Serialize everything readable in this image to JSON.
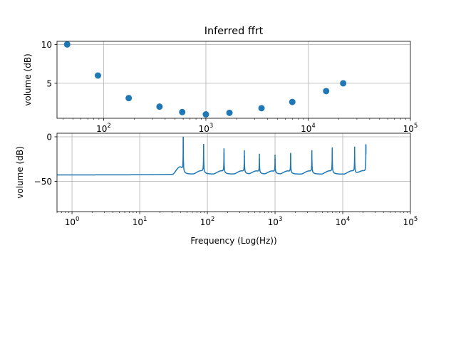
{
  "chart_data": [
    {
      "type": "scatter",
      "title": "Inferred ffrt",
      "xlabel": "",
      "ylabel": "volume (dB)",
      "xscale": "log",
      "xlim": [
        35,
        100000
      ],
      "ylim": [
        0.5,
        10.4
      ],
      "xticks": [
        {
          "value": 100,
          "base": "10",
          "exp": "2"
        },
        {
          "value": 1000,
          "base": "10",
          "exp": "3"
        },
        {
          "value": 10000,
          "base": "10",
          "exp": "4"
        },
        {
          "value": 100000,
          "base": "10",
          "exp": "5"
        }
      ],
      "yticks": [
        {
          "value": 5,
          "label": "5"
        },
        {
          "value": 10,
          "label": "10"
        }
      ],
      "grid": true,
      "color": "#1f77b4",
      "points": [
        {
          "x": 44,
          "y": 10.0
        },
        {
          "x": 88,
          "y": 6.0
        },
        {
          "x": 176,
          "y": 3.1
        },
        {
          "x": 352,
          "y": 2.0
        },
        {
          "x": 587,
          "y": 1.3
        },
        {
          "x": 1000,
          "y": 1.0
        },
        {
          "x": 1700,
          "y": 1.2
        },
        {
          "x": 3500,
          "y": 1.8
        },
        {
          "x": 7000,
          "y": 2.6
        },
        {
          "x": 15000,
          "y": 4.0
        },
        {
          "x": 22000,
          "y": 5.0
        }
      ]
    },
    {
      "type": "line",
      "title": "",
      "xlabel": "Frequency (Log(Hz))",
      "ylabel": "volume (dB)",
      "xscale": "log",
      "xlim": [
        0.6,
        100000
      ],
      "ylim": [
        -84,
        4
      ],
      "xticks": [
        {
          "value": 1,
          "base": "10",
          "exp": "0"
        },
        {
          "value": 10,
          "base": "10",
          "exp": "1"
        },
        {
          "value": 100,
          "base": "10",
          "exp": "2"
        },
        {
          "value": 1000,
          "base": "10",
          "exp": "3"
        },
        {
          "value": 10000,
          "base": "10",
          "exp": "4"
        },
        {
          "value": 100000,
          "base": "10",
          "exp": "5"
        }
      ],
      "yticks": [
        {
          "value": -50,
          "label": "−50"
        },
        {
          "value": 0,
          "label": "0"
        }
      ],
      "grid": true,
      "color": "#1f77b4",
      "baseline_db": -43,
      "x_range": [
        0.6,
        22000
      ],
      "peaks": [
        {
          "x": 44,
          "peak_db": 0,
          "dip_db": -20,
          "q": 0.5
        },
        {
          "x": 88,
          "peak_db": -8,
          "dip_db": -8,
          "q": 0.5
        },
        {
          "x": 176,
          "peak_db": -13,
          "dip_db": -8,
          "q": 0.5
        },
        {
          "x": 352,
          "peak_db": -15,
          "dip_db": -8,
          "q": 0.5
        },
        {
          "x": 587,
          "peak_db": -19,
          "dip_db": -8,
          "q": 0.5
        },
        {
          "x": 1000,
          "peak_db": -20,
          "dip_db": -8,
          "q": 0.5
        },
        {
          "x": 1700,
          "peak_db": -18,
          "dip_db": -8,
          "q": 0.5
        },
        {
          "x": 3500,
          "peak_db": -15,
          "dip_db": -8,
          "q": 0.5
        },
        {
          "x": 7000,
          "peak_db": -12,
          "dip_db": -8,
          "q": 0.5
        },
        {
          "x": 15000,
          "peak_db": -11,
          "dip_db": -8,
          "q": 0.5
        },
        {
          "x": 22000,
          "peak_db": -9,
          "dip_db": -8,
          "q": 0.5
        }
      ]
    }
  ]
}
